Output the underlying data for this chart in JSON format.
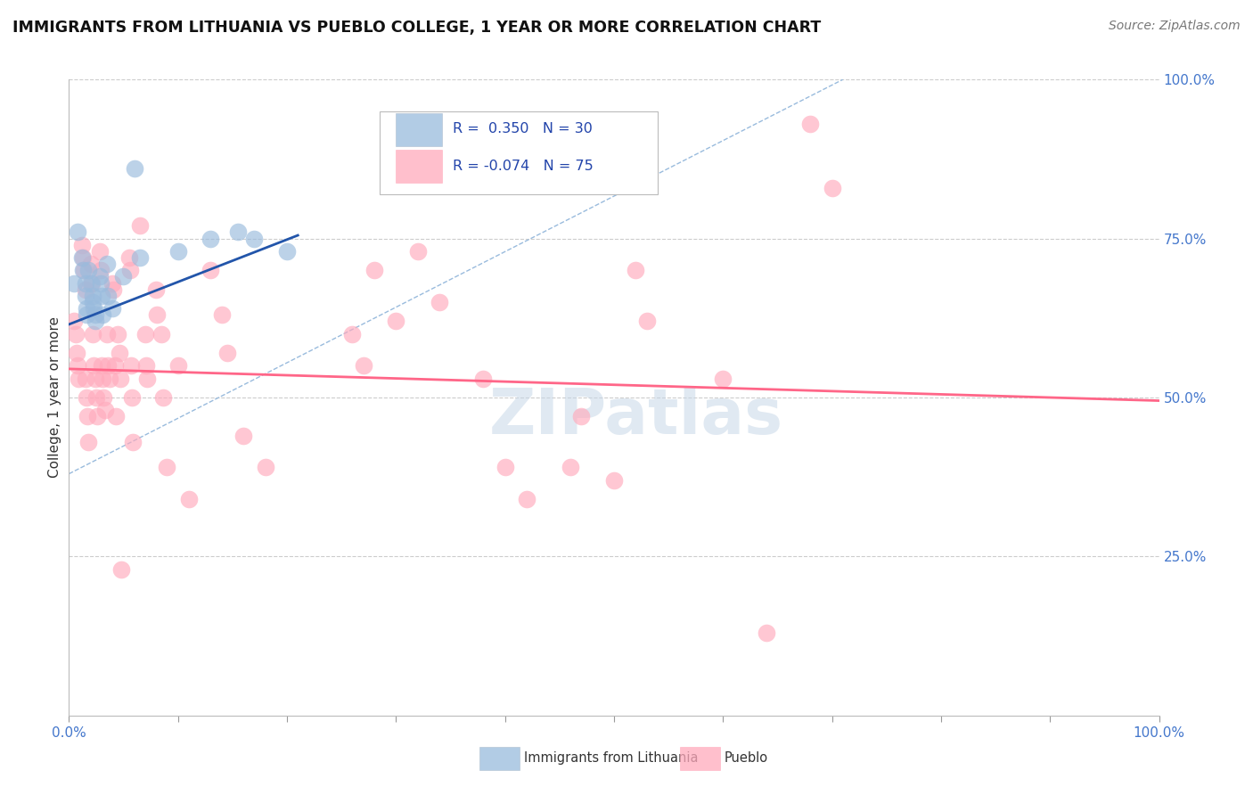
{
  "title": "IMMIGRANTS FROM LITHUANIA VS PUEBLO COLLEGE, 1 YEAR OR MORE CORRELATION CHART",
  "source": "Source: ZipAtlas.com",
  "ylabel": "College, 1 year or more",
  "xlim": [
    0.0,
    1.0
  ],
  "ylim": [
    0.0,
    1.0
  ],
  "blue_color": "#99BBDD",
  "pink_color": "#FFAABC",
  "blue_line_color": "#2255AA",
  "pink_line_color": "#FF6688",
  "dashed_line_color": "#99BBDD",
  "watermark": "ZIPatlas",
  "blue_points": [
    [
      0.005,
      0.68
    ],
    [
      0.008,
      0.76
    ],
    [
      0.012,
      0.72
    ],
    [
      0.013,
      0.7
    ],
    [
      0.015,
      0.68
    ],
    [
      0.015,
      0.66
    ],
    [
      0.016,
      0.64
    ],
    [
      0.016,
      0.63
    ],
    [
      0.018,
      0.7
    ],
    [
      0.02,
      0.68
    ],
    [
      0.022,
      0.66
    ],
    [
      0.022,
      0.65
    ],
    [
      0.023,
      0.64
    ],
    [
      0.024,
      0.63
    ],
    [
      0.024,
      0.62
    ],
    [
      0.028,
      0.69
    ],
    [
      0.029,
      0.68
    ],
    [
      0.03,
      0.66
    ],
    [
      0.031,
      0.63
    ],
    [
      0.035,
      0.71
    ],
    [
      0.036,
      0.66
    ],
    [
      0.04,
      0.64
    ],
    [
      0.05,
      0.69
    ],
    [
      0.06,
      0.86
    ],
    [
      0.065,
      0.72
    ],
    [
      0.1,
      0.73
    ],
    [
      0.13,
      0.75
    ],
    [
      0.155,
      0.76
    ],
    [
      0.17,
      0.75
    ],
    [
      0.2,
      0.73
    ]
  ],
  "pink_points": [
    [
      0.005,
      0.62
    ],
    [
      0.006,
      0.6
    ],
    [
      0.007,
      0.57
    ],
    [
      0.008,
      0.55
    ],
    [
      0.009,
      0.53
    ],
    [
      0.012,
      0.74
    ],
    [
      0.013,
      0.72
    ],
    [
      0.014,
      0.7
    ],
    [
      0.015,
      0.67
    ],
    [
      0.015,
      0.53
    ],
    [
      0.016,
      0.5
    ],
    [
      0.017,
      0.47
    ],
    [
      0.018,
      0.43
    ],
    [
      0.02,
      0.71
    ],
    [
      0.021,
      0.68
    ],
    [
      0.022,
      0.6
    ],
    [
      0.023,
      0.55
    ],
    [
      0.024,
      0.53
    ],
    [
      0.025,
      0.5
    ],
    [
      0.026,
      0.47
    ],
    [
      0.028,
      0.73
    ],
    [
      0.029,
      0.7
    ],
    [
      0.03,
      0.55
    ],
    [
      0.031,
      0.53
    ],
    [
      0.032,
      0.5
    ],
    [
      0.033,
      0.48
    ],
    [
      0.035,
      0.6
    ],
    [
      0.036,
      0.55
    ],
    [
      0.037,
      0.53
    ],
    [
      0.04,
      0.68
    ],
    [
      0.041,
      0.67
    ],
    [
      0.042,
      0.55
    ],
    [
      0.043,
      0.47
    ],
    [
      0.045,
      0.6
    ],
    [
      0.046,
      0.57
    ],
    [
      0.047,
      0.53
    ],
    [
      0.048,
      0.23
    ],
    [
      0.055,
      0.72
    ],
    [
      0.056,
      0.7
    ],
    [
      0.057,
      0.55
    ],
    [
      0.058,
      0.5
    ],
    [
      0.059,
      0.43
    ],
    [
      0.065,
      0.77
    ],
    [
      0.07,
      0.6
    ],
    [
      0.071,
      0.55
    ],
    [
      0.072,
      0.53
    ],
    [
      0.08,
      0.67
    ],
    [
      0.081,
      0.63
    ],
    [
      0.085,
      0.6
    ],
    [
      0.086,
      0.5
    ],
    [
      0.09,
      0.39
    ],
    [
      0.1,
      0.55
    ],
    [
      0.11,
      0.34
    ],
    [
      0.13,
      0.7
    ],
    [
      0.14,
      0.63
    ],
    [
      0.145,
      0.57
    ],
    [
      0.16,
      0.44
    ],
    [
      0.18,
      0.39
    ],
    [
      0.26,
      0.6
    ],
    [
      0.27,
      0.55
    ],
    [
      0.28,
      0.7
    ],
    [
      0.3,
      0.62
    ],
    [
      0.32,
      0.73
    ],
    [
      0.34,
      0.65
    ],
    [
      0.38,
      0.53
    ],
    [
      0.4,
      0.39
    ],
    [
      0.42,
      0.34
    ],
    [
      0.46,
      0.39
    ],
    [
      0.47,
      0.47
    ],
    [
      0.5,
      0.37
    ],
    [
      0.52,
      0.7
    ],
    [
      0.53,
      0.62
    ],
    [
      0.6,
      0.53
    ],
    [
      0.64,
      0.13
    ],
    [
      0.68,
      0.93
    ],
    [
      0.7,
      0.83
    ]
  ],
  "blue_trend_x": [
    0.0,
    0.21
  ],
  "blue_trend_y": [
    0.615,
    0.755
  ],
  "pink_trend_x": [
    0.0,
    1.0
  ],
  "pink_trend_y": [
    0.545,
    0.495
  ],
  "dashed_trend_x": [
    0.0,
    0.71
  ],
  "dashed_trend_y": [
    0.38,
    1.0
  ]
}
